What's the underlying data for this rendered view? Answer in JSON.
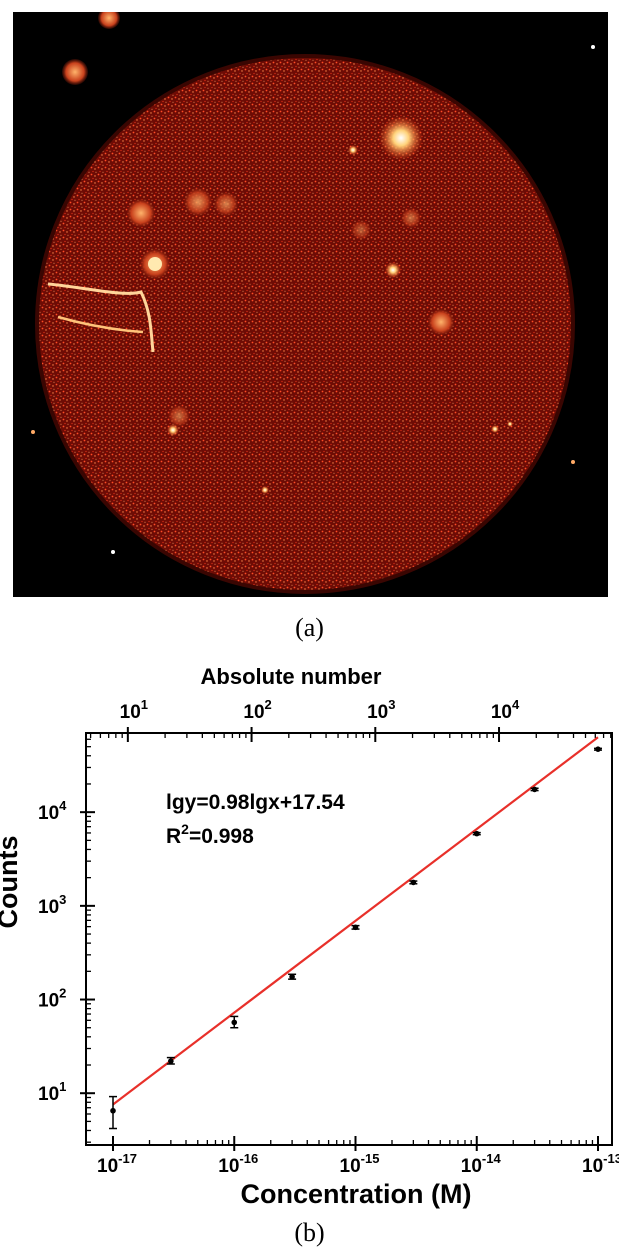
{
  "panel_a": {
    "caption": "(a)",
    "image": "fluorescence-microscopy-image-of-round-chamber"
  },
  "panel_b": {
    "caption": "(b)"
  },
  "chart_data": {
    "type": "scatter",
    "xlabel": "Concentration (M)",
    "ylabel": "Counts",
    "top_axis_label": "Absolute number",
    "x_scale": "log",
    "y_scale": "log",
    "xlim": [
      1e-17,
      1e-13
    ],
    "ylim": [
      2.8,
      70000
    ],
    "x_ticks": [
      {
        "base": "10",
        "exp": "-17",
        "value": 1e-17
      },
      {
        "base": "10",
        "exp": "-16",
        "value": 1e-16
      },
      {
        "base": "10",
        "exp": "-15",
        "value": 1e-15
      },
      {
        "base": "10",
        "exp": "-14",
        "value": 1e-14
      },
      {
        "base": "10",
        "exp": "-13",
        "value": 1e-13
      }
    ],
    "y_ticks": [
      {
        "base": "10",
        "exp": "1",
        "value": 10
      },
      {
        "base": "10",
        "exp": "2",
        "value": 100
      },
      {
        "base": "10",
        "exp": "3",
        "value": 1000
      },
      {
        "base": "10",
        "exp": "4",
        "value": 10000
      }
    ],
    "top_ticks": [
      {
        "base": "10",
        "exp": "1",
        "value": 10
      },
      {
        "base": "10",
        "exp": "2",
        "value": 100
      },
      {
        "base": "10",
        "exp": "3",
        "value": 1000
      },
      {
        "base": "10",
        "exp": "4",
        "value": 10000
      }
    ],
    "points": [
      {
        "x": 1e-17,
        "y": 6.5,
        "err_low": 4.2,
        "err_high": 9.2
      },
      {
        "x": 3e-17,
        "y": 22,
        "err_low": 20.5,
        "err_high": 24
      },
      {
        "x": 1e-16,
        "y": 57,
        "err_low": 50,
        "err_high": 66
      },
      {
        "x": 3e-16,
        "y": 175,
        "err_low": 165,
        "err_high": 186
      },
      {
        "x": 1e-15,
        "y": 590,
        "err_low": 565,
        "err_high": 615
      },
      {
        "x": 3e-15,
        "y": 1780,
        "err_low": 1720,
        "err_high": 1840
      },
      {
        "x": 1e-14,
        "y": 5900,
        "err_low": 5750,
        "err_high": 6050
      },
      {
        "x": 3e-14,
        "y": 17500,
        "err_low": 17000,
        "err_high": 18000
      },
      {
        "x": 1e-13,
        "y": 47000,
        "err_low": 46000,
        "err_high": 48000
      }
    ],
    "fit": {
      "slope": 0.98,
      "intercept": 17.54,
      "color": "#e8302a"
    },
    "annotation": {
      "equation": "lgy=0.98lgx+17.54",
      "r2_prefix": "R",
      "r2_sup": "2",
      "r2_value": "=0.998"
    },
    "marker_color": "#000000",
    "grid": false
  }
}
